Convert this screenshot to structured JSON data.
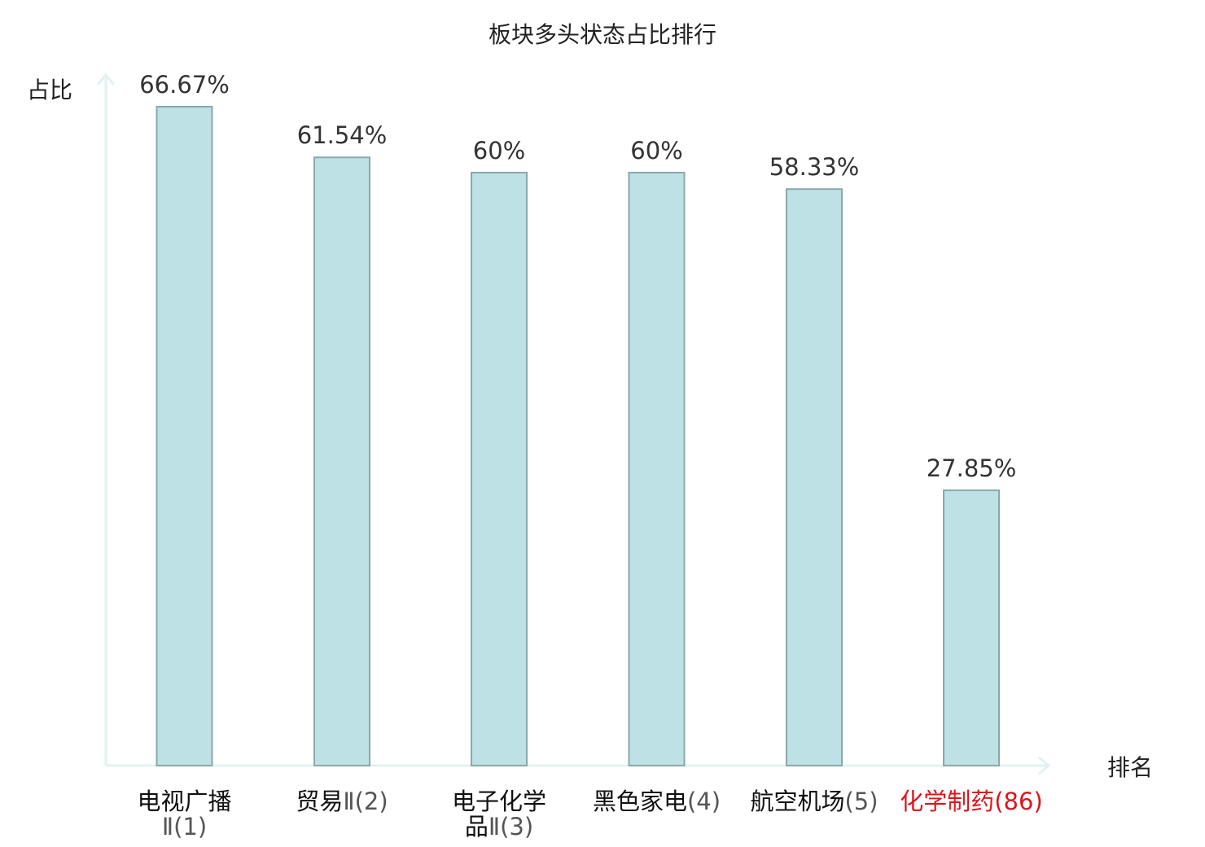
{
  "chart_data": {
    "type": "bar",
    "title": "板块多头状态占比排行",
    "ylabel": "占比",
    "xlabel": "排名",
    "ylim": [
      0,
      70
    ],
    "grid": false,
    "categories": [
      {
        "name": "电视广播",
        "rank": "Ⅱ(1)",
        "highlight": false
      },
      {
        "name": "贸易",
        "rank": "Ⅱ(2)",
        "highlight": false
      },
      {
        "name": "电子化学",
        "rank": "品Ⅱ(3)",
        "highlight": false
      },
      {
        "name": "黑色家电",
        "rank": "(4)",
        "highlight": false
      },
      {
        "name": "航空机场",
        "rank": "(5)",
        "highlight": false
      },
      {
        "name": "化学制药",
        "rank": "(86)",
        "highlight": true
      }
    ],
    "values": [
      66.67,
      61.54,
      60,
      60,
      58.33,
      27.85
    ],
    "value_labels": [
      "66.67%",
      "61.54%",
      "60%",
      "60%",
      "58.33%",
      "27.85%"
    ],
    "colors": {
      "bar_fill": "#bde1e4",
      "bar_stroke": "#8aa9ab",
      "axis": "#e2f2f0",
      "highlight": "#e0141b"
    }
  }
}
